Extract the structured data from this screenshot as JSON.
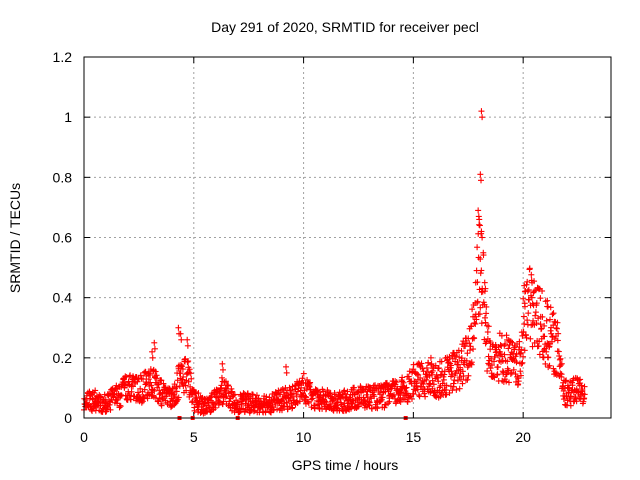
{
  "chart_data": {
    "type": "scatter",
    "title": "Day 291 of 2020, SRMTID for receiver pecl",
    "xlabel": "GPS time / hours",
    "ylabel": "SRMTID / TECUs",
    "xlim": [
      0,
      24
    ],
    "ylim": [
      0,
      1.2
    ],
    "x_ticks": [
      0,
      5,
      10,
      15,
      20
    ],
    "y_ticks": [
      0,
      0.2,
      0.4,
      0.6,
      0.8,
      1,
      1.2
    ],
    "x_tick_labels": [
      "0",
      "5",
      "10",
      "15",
      "20"
    ],
    "y_tick_labels": [
      "0",
      "0.2",
      "0.4",
      "0.6",
      "0.8",
      "1",
      "1.2"
    ],
    "grid": true,
    "marker": "+",
    "color": "#ff0000",
    "series": [
      {
        "name": "SRMTID",
        "profile": [
          [
            0.0,
            0.05
          ],
          [
            0.5,
            0.06
          ],
          [
            1.0,
            0.05
          ],
          [
            1.5,
            0.07
          ],
          [
            2.0,
            0.1
          ],
          [
            2.5,
            0.09
          ],
          [
            3.0,
            0.13
          ],
          [
            3.3,
            0.1
          ],
          [
            3.6,
            0.08
          ],
          [
            4.0,
            0.06
          ],
          [
            4.4,
            0.14
          ],
          [
            4.7,
            0.15
          ],
          [
            5.0,
            0.06
          ],
          [
            5.5,
            0.04
          ],
          [
            6.0,
            0.06
          ],
          [
            6.4,
            0.1
          ],
          [
            6.8,
            0.05
          ],
          [
            7.5,
            0.05
          ],
          [
            8.0,
            0.05
          ],
          [
            8.5,
            0.05
          ],
          [
            9.0,
            0.06
          ],
          [
            9.5,
            0.07
          ],
          [
            10.0,
            0.1
          ],
          [
            10.5,
            0.06
          ],
          [
            11.0,
            0.06
          ],
          [
            11.5,
            0.05
          ],
          [
            12.0,
            0.06
          ],
          [
            12.5,
            0.07
          ],
          [
            13.0,
            0.07
          ],
          [
            13.5,
            0.07
          ],
          [
            14.0,
            0.08
          ],
          [
            14.5,
            0.09
          ],
          [
            15.0,
            0.12
          ],
          [
            15.5,
            0.13
          ],
          [
            16.0,
            0.12
          ],
          [
            16.5,
            0.14
          ],
          [
            17.0,
            0.16
          ],
          [
            17.5,
            0.2
          ],
          [
            17.8,
            0.35
          ],
          [
            18.0,
            0.55
          ],
          [
            18.2,
            0.4
          ],
          [
            18.4,
            0.22
          ],
          [
            18.7,
            0.22
          ],
          [
            19.0,
            0.2
          ],
          [
            19.3,
            0.2
          ],
          [
            19.6,
            0.17
          ],
          [
            19.9,
            0.18
          ],
          [
            20.1,
            0.38
          ],
          [
            20.4,
            0.36
          ],
          [
            20.7,
            0.33
          ],
          [
            21.0,
            0.28
          ],
          [
            21.3,
            0.26
          ],
          [
            21.6,
            0.22
          ],
          [
            21.9,
            0.09
          ],
          [
            22.2,
            0.08
          ],
          [
            22.5,
            0.1
          ],
          [
            22.8,
            0.07
          ]
        ],
        "spikes": [
          [
            18.1,
            1.02
          ],
          [
            18.05,
            0.81
          ],
          [
            17.95,
            0.69
          ],
          [
            18.0,
            0.66
          ],
          [
            18.1,
            0.62
          ],
          [
            18.25,
            0.45
          ],
          [
            20.05,
            0.44
          ],
          [
            20.4,
            0.4
          ],
          [
            21.1,
            0.39
          ],
          [
            3.2,
            0.25
          ],
          [
            3.1,
            0.22
          ],
          [
            4.3,
            0.3
          ],
          [
            4.4,
            0.28
          ],
          [
            4.7,
            0.26
          ],
          [
            6.3,
            0.18
          ],
          [
            9.2,
            0.17
          ],
          [
            15.8,
            0.2
          ]
        ],
        "markers_at_zero": [
          4.35,
          4.95,
          7.0,
          14.65
        ]
      }
    ]
  }
}
